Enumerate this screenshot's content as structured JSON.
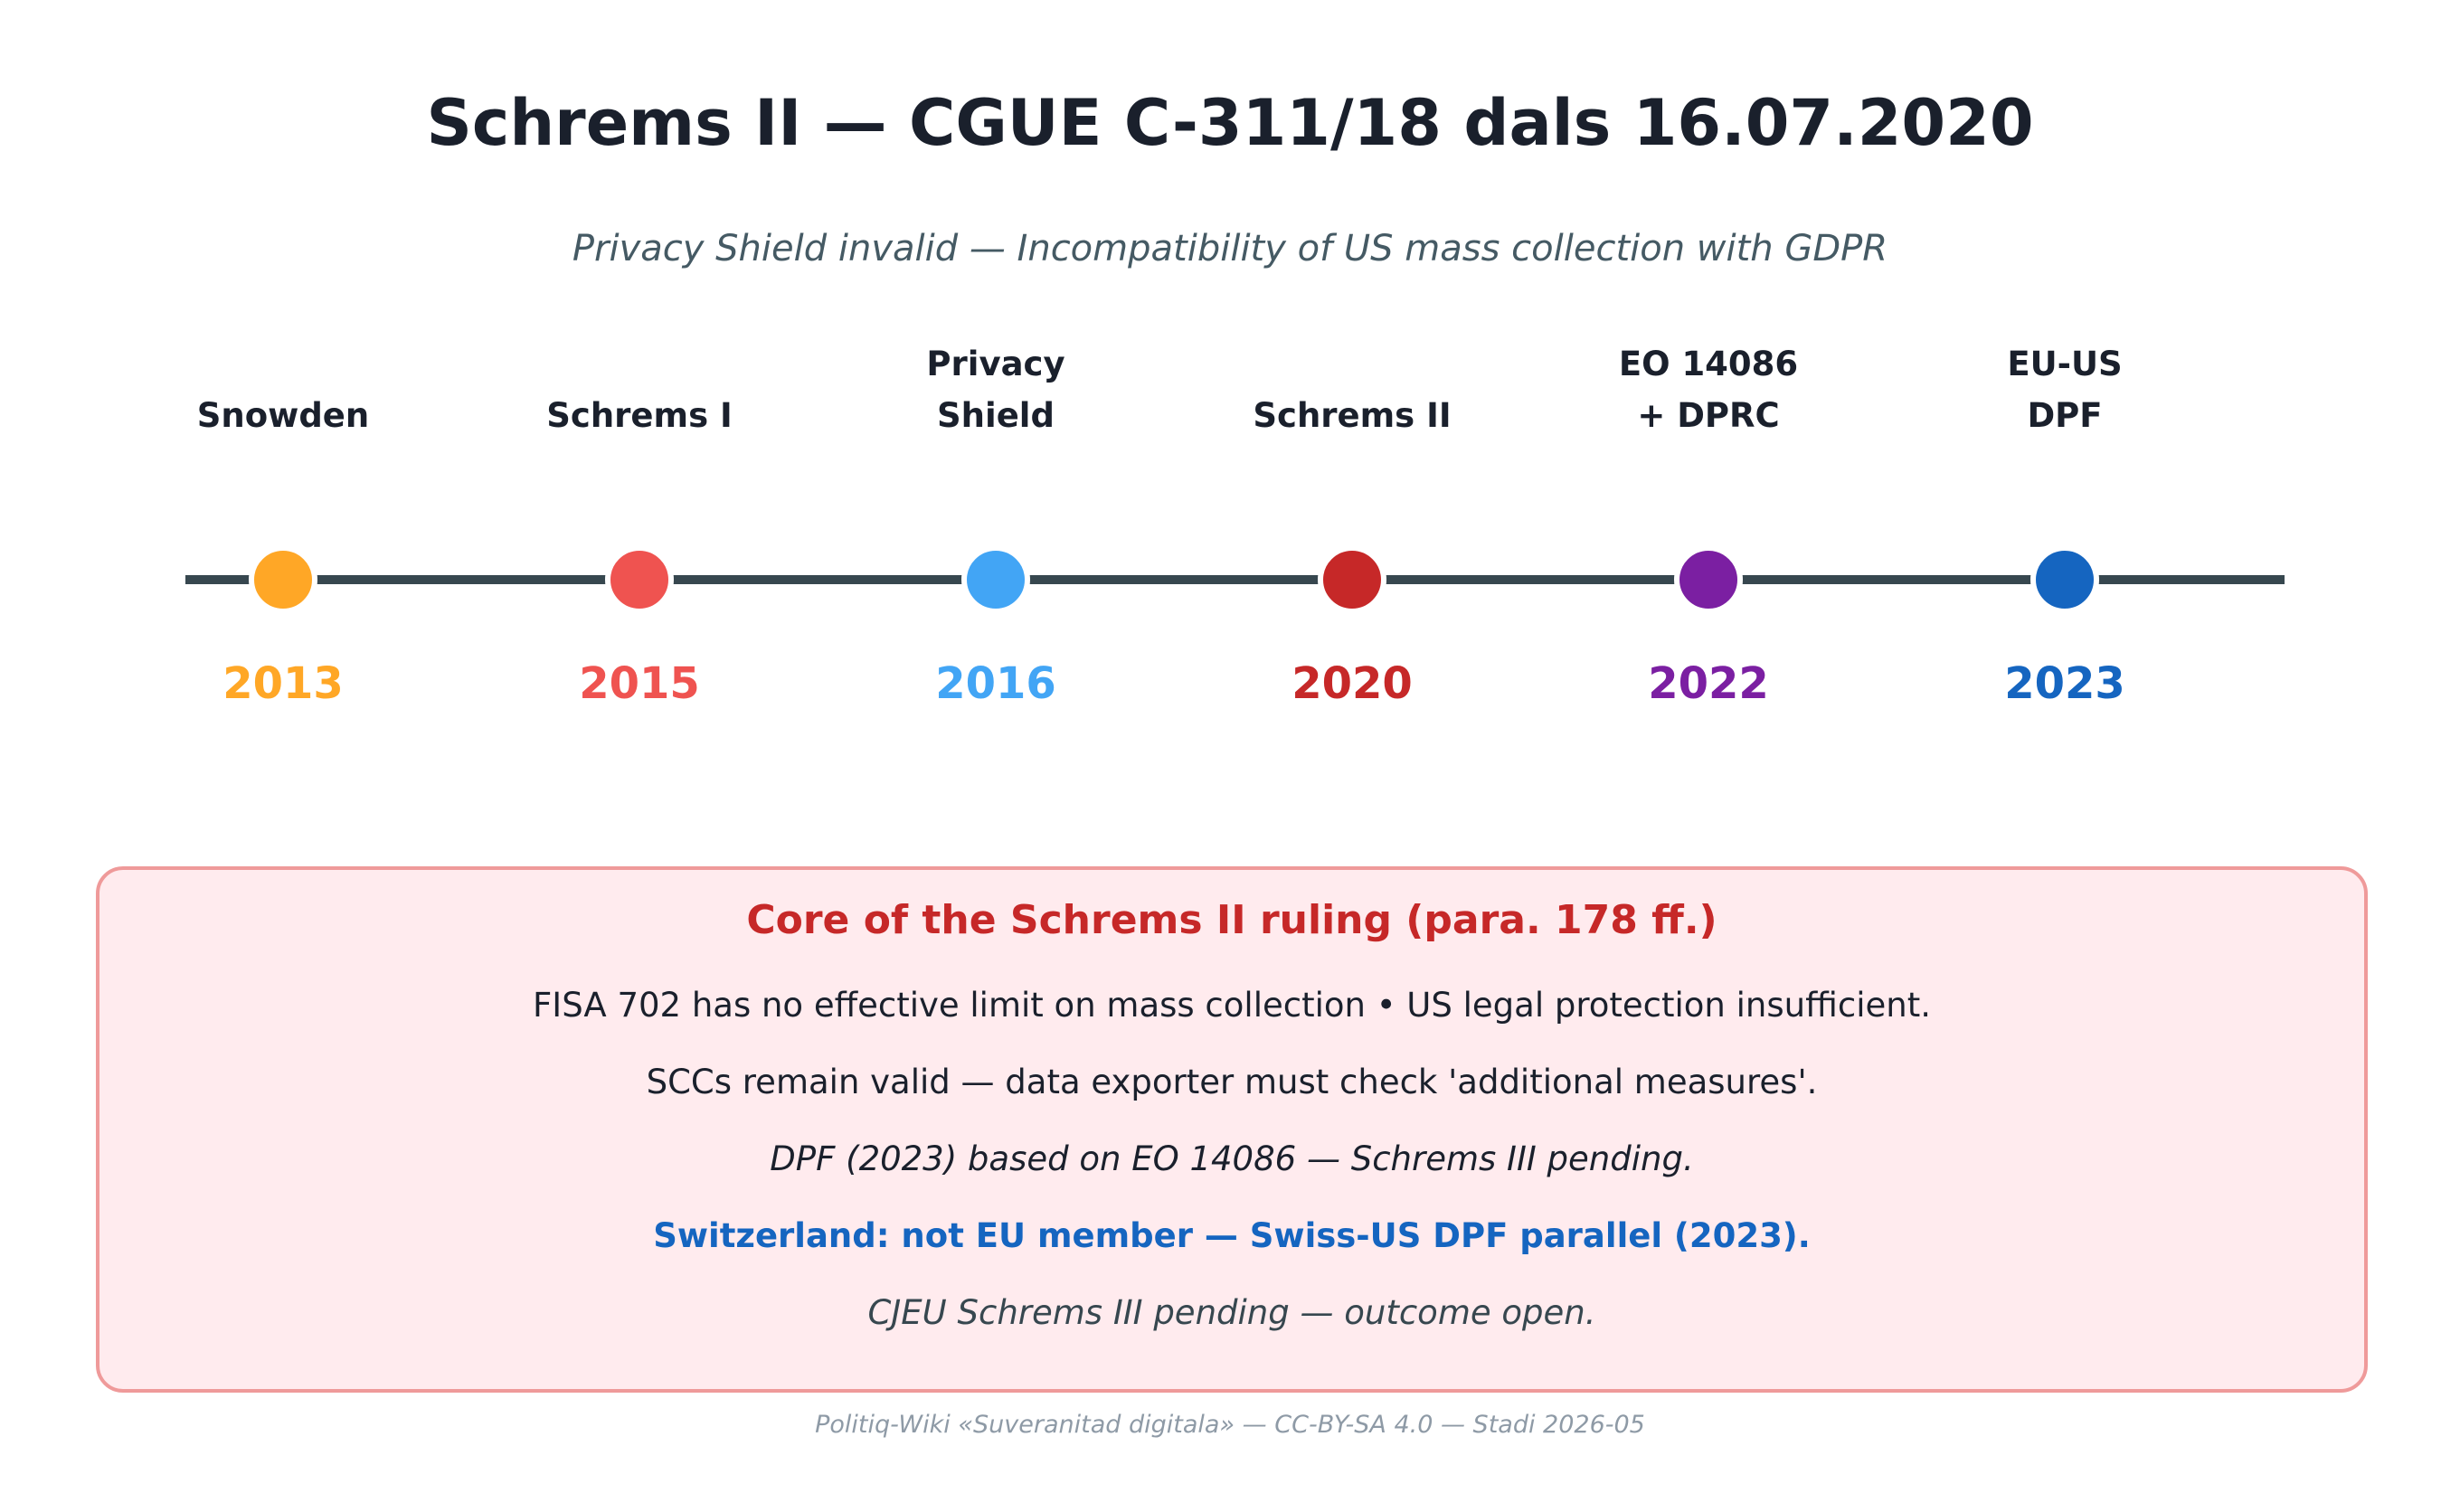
{
  "title": "Schrems II — CGUE C-311/18 dals 16.07.2020",
  "subtitle": "Privacy Shield invalid — Incompatibility of US mass collection with GDPR",
  "timeline": {
    "line_color": "#37474f",
    "events": [
      {
        "label": [
          "Snowden"
        ],
        "year": "2013",
        "color": "#ffa726"
      },
      {
        "label": [
          "Schrems I"
        ],
        "year": "2015",
        "color": "#ef5350"
      },
      {
        "label": [
          "Privacy",
          "Shield"
        ],
        "year": "2016",
        "color": "#42a5f5"
      },
      {
        "label": [
          "Schrems II"
        ],
        "year": "2020",
        "color": "#c62828"
      },
      {
        "label": [
          "EO 14086",
          "+ DPRC"
        ],
        "year": "2022",
        "color": "#7b1fa2"
      },
      {
        "label": [
          "EU-US",
          "DPF"
        ],
        "year": "2023",
        "color": "#1565c0"
      }
    ]
  },
  "box": {
    "title": "Core of the Schrems II ruling (para. 178 ff.)",
    "lines": [
      {
        "text": "FISA 702 has no effective limit on mass collection • US legal protection insufficient.",
        "style": "normal",
        "color": "#1a202c"
      },
      {
        "text": "SCCs remain valid — data exporter must check 'additional measures'.",
        "style": "normal",
        "color": "#1a202c"
      },
      {
        "text": "DPF (2023) based on EO 14086 — Schrems III pending.",
        "style": "italic",
        "color": "#1a202c"
      },
      {
        "text": "Switzerland: not EU member — Swiss-US DPF parallel (2023).",
        "style": "bold",
        "color": "#1565c0"
      },
      {
        "text": "CJEU Schrems III pending — outcome open.",
        "style": "italic",
        "color": "#37474f"
      }
    ],
    "title_color": "#c62828"
  },
  "footer": "Politiq-Wiki «Suveranitad digitala» — CC-BY-SA 4.0 — Stadi 2026-05"
}
